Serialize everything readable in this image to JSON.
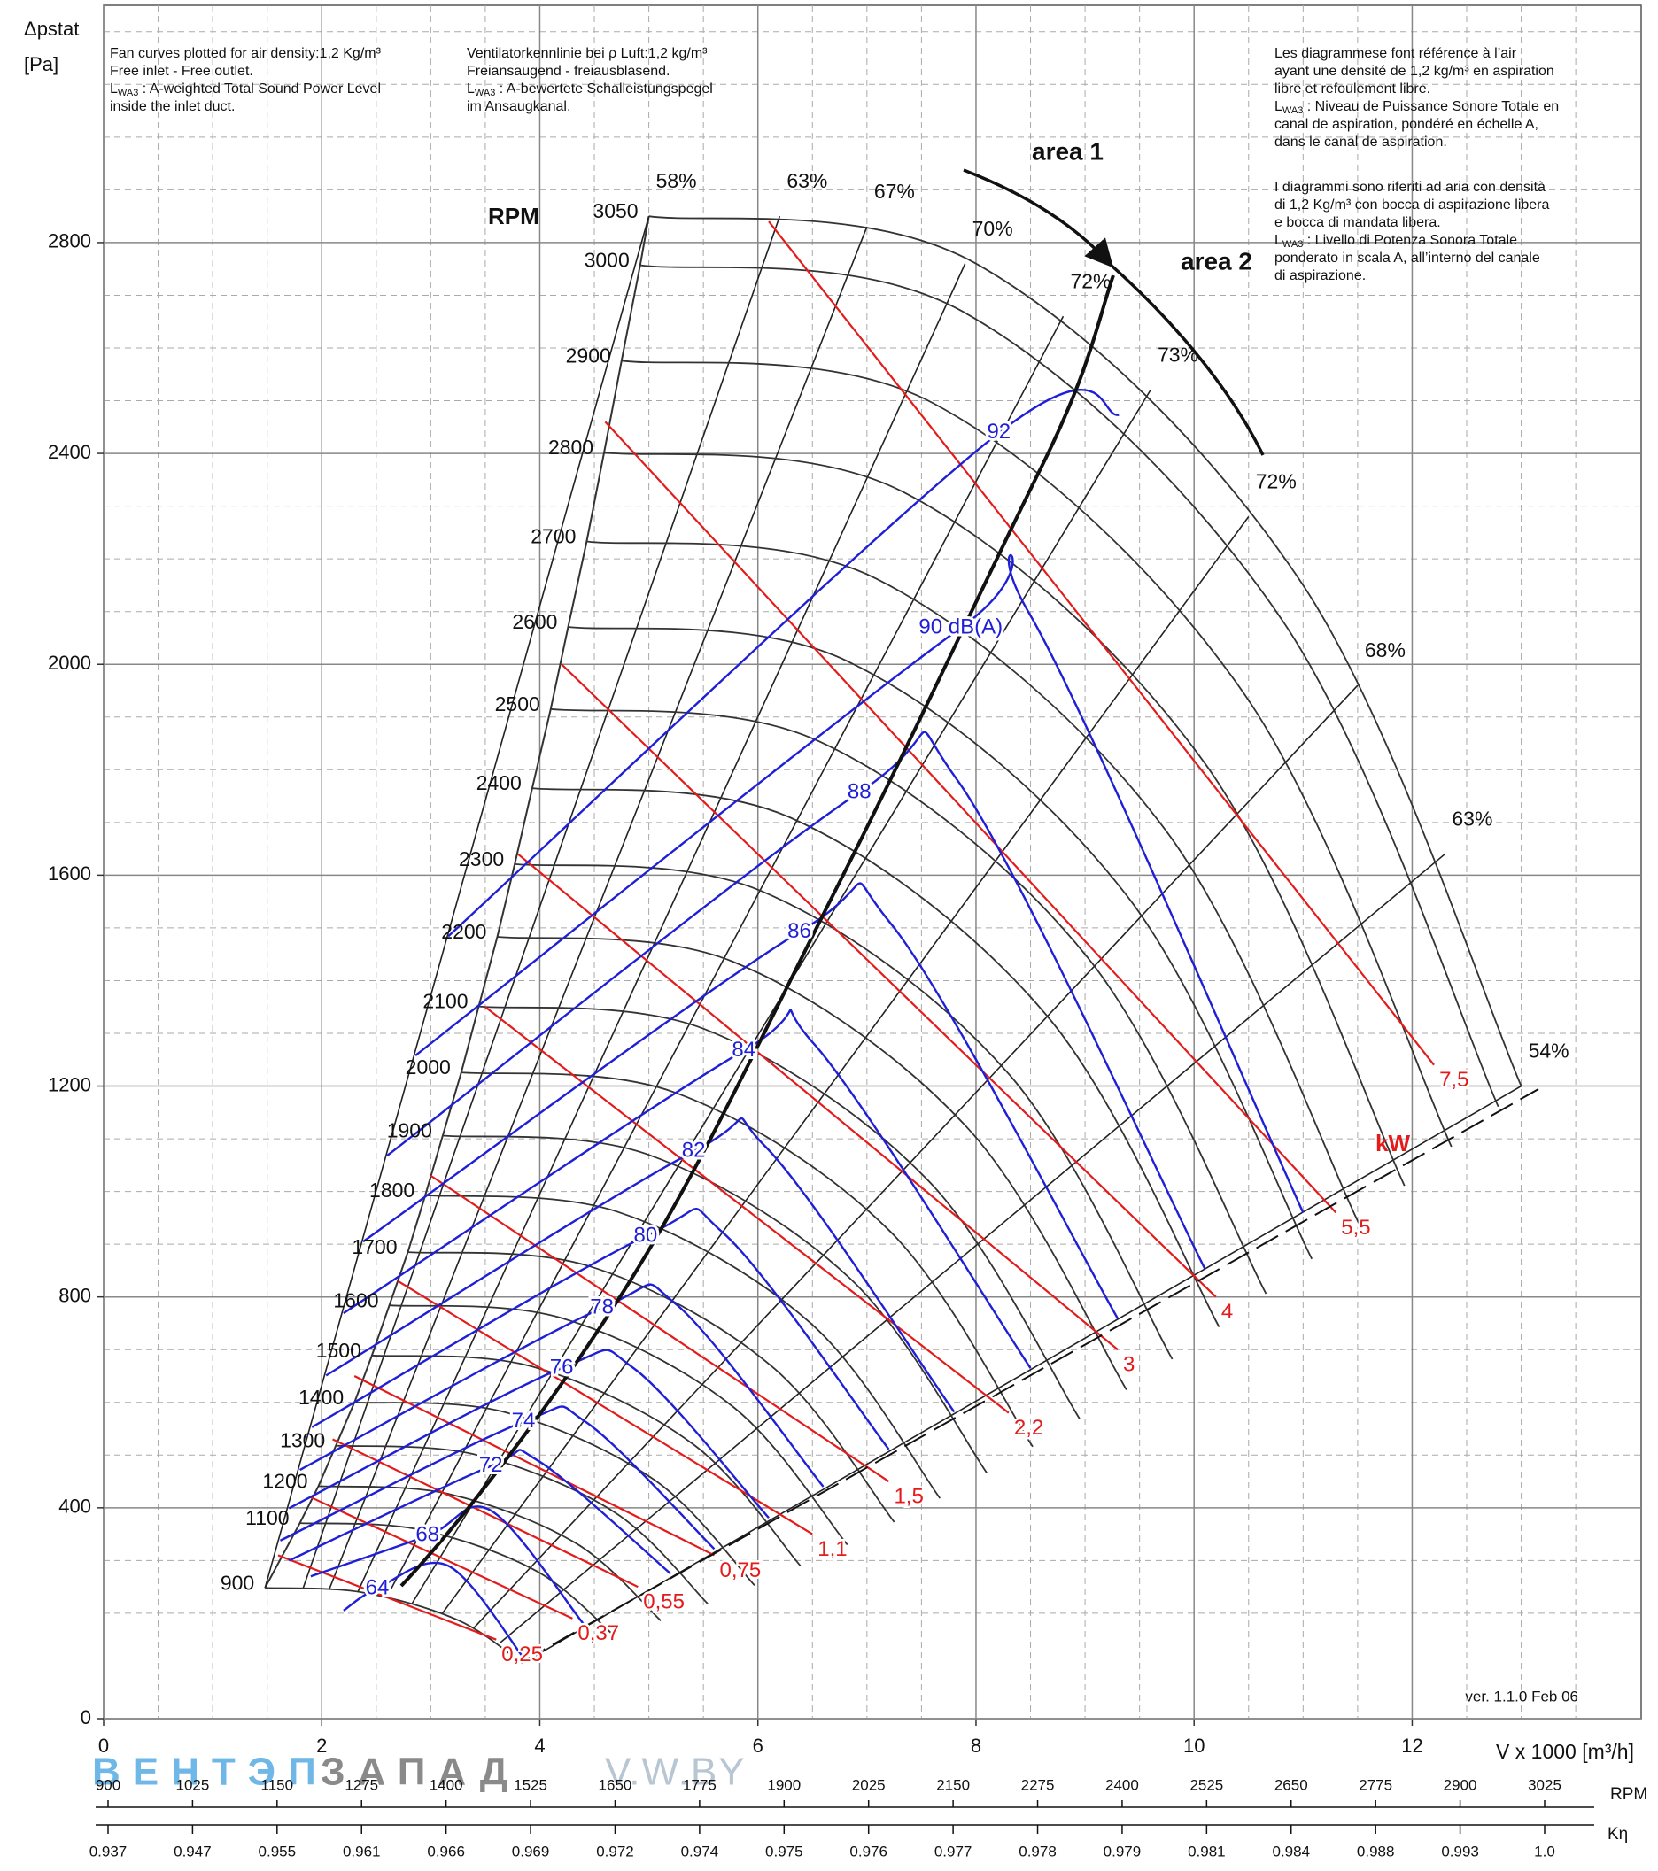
{
  "chart_data": {
    "type": "fan-curve",
    "y_label": "Δpstat",
    "y_unit": "[Pa]",
    "x_label": "V x 1000 [m³/h]",
    "xlim": [
      0,
      14.1
    ],
    "ylim": [
      0,
      3250
    ],
    "xticks": [
      0,
      2,
      4,
      6,
      8,
      10,
      12
    ],
    "yticks": [
      0,
      400,
      800,
      1200,
      1600,
      2000,
      2400,
      2800
    ],
    "minor_xticks": [
      0.5,
      1,
      1.5,
      2.5,
      3,
      3.5,
      4.5,
      5,
      5.5,
      6.5,
      7,
      7.5,
      8.5,
      9,
      9.5,
      10.5,
      11,
      11.5,
      12.5,
      13,
      13.5
    ],
    "minor_yticks": [
      100,
      200,
      300,
      500,
      600,
      700,
      900,
      1000,
      1100,
      1300,
      1400,
      1500,
      1700,
      1800,
      1900,
      2100,
      2200,
      2300,
      2500,
      2600,
      2700,
      2900,
      3000,
      3100,
      3200
    ],
    "grid": true,
    "rpm_label": "RPM",
    "rpm_color": "#333333",
    "rpm_curves": [
      {
        "rpm": 3050,
        "x": [
          5.0,
          8.0,
          11.0,
          13.0
        ],
        "values": [
          2850,
          2760,
          2150,
          1200
        ]
      },
      {
        "rpm": 3000,
        "x": [
          4.92,
          7.87,
          10.82,
          12.79
        ],
        "values": [
          2757,
          2670,
          2080,
          1161
        ]
      },
      {
        "rpm": 2900,
        "x": [
          4.75,
          7.61,
          10.46,
          12.36
        ],
        "values": [
          2576,
          2495,
          1944,
          1085
        ]
      },
      {
        "rpm": 2800,
        "x": [
          4.59,
          7.34,
          10.1,
          11.93
        ],
        "values": [
          2402,
          2326,
          1812,
          1011
        ]
      },
      {
        "rpm": 2700,
        "x": [
          4.43,
          7.08,
          9.74,
          11.51
        ],
        "values": [
          2233,
          2163,
          1685,
          940
        ]
      },
      {
        "rpm": 2600,
        "x": [
          4.26,
          6.82,
          9.38,
          11.08
        ],
        "values": [
          2071,
          2006,
          1562,
          872
        ]
      },
      {
        "rpm": 2500,
        "x": [
          4.1,
          6.56,
          9.02,
          10.66
        ],
        "values": [
          1915,
          1854,
          1445,
          806
        ]
      },
      {
        "rpm": 2400,
        "x": [
          3.93,
          6.3,
          8.66,
          10.23
        ],
        "values": [
          1765,
          1709,
          1331,
          743
        ]
      },
      {
        "rpm": 2300,
        "x": [
          3.77,
          6.03,
          8.3,
          9.8
        ],
        "values": [
          1621,
          1570,
          1223,
          682
        ]
      },
      {
        "rpm": 2200,
        "x": [
          3.61,
          5.77,
          7.93,
          9.38
        ],
        "values": [
          1483,
          1436,
          1119,
          624
        ]
      },
      {
        "rpm": 2100,
        "x": [
          3.44,
          5.51,
          7.57,
          8.95
        ],
        "values": [
          1351,
          1308,
          1019,
          569
        ]
      },
      {
        "rpm": 2000,
        "x": [
          3.28,
          5.25,
          7.21,
          8.52
        ],
        "values": [
          1226,
          1187,
          925,
          516
        ]
      },
      {
        "rpm": 1900,
        "x": [
          3.11,
          4.98,
          6.85,
          8.1
        ],
        "values": [
          1106,
          1071,
          834,
          466
        ]
      },
      {
        "rpm": 1800,
        "x": [
          2.95,
          4.72,
          6.49,
          7.67
        ],
        "values": [
          993,
          961,
          749,
          418
        ]
      },
      {
        "rpm": 1700,
        "x": [
          2.79,
          4.46,
          6.13,
          7.25
        ],
        "values": [
          885,
          858,
          668,
          373
        ]
      },
      {
        "rpm": 1600,
        "x": [
          2.62,
          4.2,
          5.77,
          6.82
        ],
        "values": [
          784,
          760,
          592,
          330
        ]
      },
      {
        "rpm": 1500,
        "x": [
          2.46,
          3.93,
          5.41,
          6.39
        ],
        "values": [
          689,
          668,
          520,
          290
        ]
      },
      {
        "rpm": 1400,
        "x": [
          2.3,
          3.67,
          5.05,
          5.97
        ],
        "values": [
          600,
          582,
          453,
          253
        ]
      },
      {
        "rpm": 1300,
        "x": [
          2.13,
          3.41,
          4.69,
          5.54
        ],
        "values": [
          518,
          501,
          391,
          218
        ]
      },
      {
        "rpm": 1200,
        "x": [
          1.97,
          3.15,
          4.33,
          5.11
        ],
        "values": [
          441,
          427,
          333,
          186
        ]
      },
      {
        "rpm": 1100,
        "x": [
          1.8,
          2.89,
          3.97,
          4.69
        ],
        "values": [
          371,
          359,
          280,
          156
        ]
      },
      {
        "rpm": 900,
        "x": [
          1.48,
          2.36,
          3.25,
          3.84
        ],
        "values": [
          248,
          240,
          187,
          105
        ]
      }
    ],
    "efficiency_color": "#222222",
    "efficiency_lines": [
      {
        "value": 58,
        "label": "58%",
        "x": [
          5.0,
          1.48
        ],
        "values": [
          2850,
          248
        ]
      },
      {
        "value": 63,
        "label": "63%",
        "x": [
          6.2,
          1.83
        ],
        "values": [
          2850,
          248
        ]
      },
      {
        "value": 67,
        "label": "67%",
        "x": [
          7.0,
          2.07
        ],
        "values": [
          2830,
          246
        ]
      },
      {
        "value": 70,
        "label": "70%",
        "x": [
          7.9,
          2.33
        ],
        "values": [
          2760,
          240
        ]
      },
      {
        "value": 72,
        "label": "72%",
        "x": [
          8.8,
          2.6
        ],
        "values": [
          2660,
          232
        ]
      },
      {
        "value": 73,
        "label": "73%",
        "x": [
          9.6,
          2.83
        ],
        "values": [
          2520,
          219
        ]
      },
      {
        "value": 72,
        "label": "72%",
        "x": [
          10.5,
          3.1
        ],
        "values": [
          2280,
          198
        ]
      },
      {
        "value": 68,
        "label": "68%",
        "x": [
          11.5,
          3.39
        ],
        "values": [
          1960,
          171
        ]
      },
      {
        "value": 63,
        "label": "63%",
        "x": [
          12.3,
          3.63
        ],
        "values": [
          1640,
          143
        ]
      },
      {
        "value": 54,
        "label": "54%",
        "x": [
          13.0,
          3.84
        ],
        "values": [
          1200,
          105
        ]
      }
    ],
    "power_label": "kW",
    "power_color": "#e41b1b",
    "power_lines": [
      {
        "value": 0.25,
        "label": "0,25",
        "x": [
          1.6,
          3.6
        ],
        "values": [
          310,
          150
        ]
      },
      {
        "value": 0.37,
        "label": "0,37",
        "x": [
          1.9,
          4.3
        ],
        "values": [
          420,
          190
        ]
      },
      {
        "value": 0.55,
        "label": "0,55",
        "x": [
          2.1,
          4.9
        ],
        "values": [
          530,
          250
        ]
      },
      {
        "value": 0.75,
        "label": "0,75",
        "x": [
          2.3,
          5.6
        ],
        "values": [
          650,
          310
        ]
      },
      {
        "value": 1.1,
        "label": "1,1",
        "x": [
          2.7,
          6.5
        ],
        "values": [
          830,
          350
        ]
      },
      {
        "value": 1.5,
        "label": "1,5",
        "x": [
          3.0,
          7.2
        ],
        "values": [
          1030,
          450
        ]
      },
      {
        "value": 2.2,
        "label": "2,2",
        "x": [
          3.5,
          8.3
        ],
        "values": [
          1350,
          580
        ]
      },
      {
        "value": 3,
        "x": [
          3.8,
          9.3
        ],
        "values": [
          1640,
          700
        ]
      },
      {
        "value": 4,
        "x": [
          4.2,
          10.2
        ],
        "values": [
          2000,
          800
        ]
      },
      {
        "value": 5.5,
        "label": "5,5",
        "x": [
          4.6,
          11.3
        ],
        "values": [
          2460,
          960
        ]
      },
      {
        "value": 7.5,
        "label": "7,5",
        "x": [
          6.1,
          12.2
        ],
        "values": [
          2840,
          1240
        ]
      }
    ],
    "sound_color": "#1f1fd6",
    "sound_curves": [
      {
        "value": 64,
        "x": [
          2.2,
          2.51,
          3.16,
          3.87
        ],
        "values": [
          205,
          247,
          290,
          110
        ]
      },
      {
        "value": 68,
        "x": [
          1.9,
          2.97,
          3.55,
          4.4
        ],
        "values": [
          270,
          347,
          395,
          180
        ]
      },
      {
        "value": 72,
        "x": [
          1.7,
          3.55,
          3.98,
          5.2
        ],
        "values": [
          300,
          479,
          490,
          275
        ]
      },
      {
        "value": 74,
        "x": [
          1.62,
          3.85,
          4.42,
          5.6
        ],
        "values": [
          338,
          563,
          563,
          322
        ]
      },
      {
        "value": 76,
        "x": [
          1.7,
          4.2,
          4.86,
          6.1
        ],
        "values": [
          399,
          665,
          665,
          381
        ]
      },
      {
        "value": 78,
        "x": [
          1.8,
          4.57,
          5.25,
          6.6
        ],
        "values": [
          472,
          779,
          786,
          440
        ]
      },
      {
        "value": 80,
        "x": [
          1.91,
          4.97,
          5.68,
          7.2
        ],
        "values": [
          553,
          915,
          922,
          511
        ]
      },
      {
        "value": 82,
        "x": [
          2.04,
          5.41,
          6.07,
          7.8
        ],
        "values": [
          651,
          1076,
          1085,
          582
        ]
      },
      {
        "value": 84,
        "x": [
          2.2,
          5.87,
          6.51,
          8.5
        ],
        "values": [
          769,
          1267,
          1281,
          665
        ]
      },
      {
        "value": 86,
        "x": [
          2.38,
          6.38,
          7.22,
          9.3
        ],
        "values": [
          905,
          1492,
          1508,
          759
        ]
      },
      {
        "value": 88,
        "x": [
          2.6,
          6.93,
          7.83,
          10.1
        ],
        "values": [
          1068,
          1757,
          1780,
          853
        ]
      },
      {
        "value": 90,
        "label": "90 dB(A)",
        "x": [
          2.86,
          7.86,
          8.49,
          11.0
        ],
        "values": [
          1258,
          2069,
          2096,
          960
        ]
      },
      {
        "value": 92,
        "x": [
          3.16,
          8.21,
          9.31
        ],
        "values": [
          1484,
          2439,
          2473
        ]
      }
    ],
    "areas": [
      "area 1",
      "area 2"
    ],
    "version": "ver. 1.1.0 Feb 06",
    "notes": [
      [
        "Fan curves plotted for air density:1,2 Kg/m³",
        "Free inlet - Free outlet.",
        {
          "symbol": "L",
          "sub": "WA3",
          "text": " : A-weighted Total Sound Power Level"
        },
        "inside the inlet duct."
      ],
      [
        "Ventilatorkennlinie bei ρ Luft:1,2 kg/m³",
        "Freiansaugend - freiausblasend.",
        {
          "symbol": "L",
          "sub": "WA3",
          "text": " : A-bewertete Schalleistungspegel"
        },
        "im Ansaugkanal."
      ],
      [
        "Les diagrammese font référence à l’air",
        "ayant une densité de 1,2 kg/m³ en aspiration",
        "libre et refoulement libre.",
        {
          "symbol": "L",
          "sub": "WA3",
          "text": " : Niveau de Puissance Sonore Totale en"
        },
        "canal de aspiration, pondéré en échelle A,",
        "dans le canal de aspiration."
      ],
      [
        "I diagrammi sono riferiti ad aria con densità",
        "di 1,2 Kg/m³ con bocca di aspirazione libera",
        "e bocca di mandata libera.",
        {
          "symbol": "L",
          "sub": "WA3",
          "text": " : Livello di Potenza Sonora Totale"
        },
        "ponderato in scala A, all’interno del canale",
        "di aspirazione."
      ]
    ],
    "rpm_scale": {
      "label": "RPM",
      "ticks": [
        900,
        1025,
        1150,
        1275,
        1400,
        1525,
        1650,
        1775,
        1900,
        2025,
        2150,
        2275,
        2400,
        2525,
        2650,
        2775,
        2900,
        3025
      ]
    },
    "k_scale": {
      "label": "Kη",
      "ticks": [
        0.937,
        0.947,
        0.955,
        0.961,
        0.966,
        0.969,
        0.972,
        0.974,
        0.975,
        0.976,
        0.977,
        0.978,
        0.979,
        0.981,
        0.984,
        0.988,
        0.993,
        {
          "value": 1,
          "label": "1.0"
        }
      ]
    },
    "watermark": [
      "ВЕНТЭП",
      "ЗАПАД",
      "V.W.BY"
    ]
  }
}
